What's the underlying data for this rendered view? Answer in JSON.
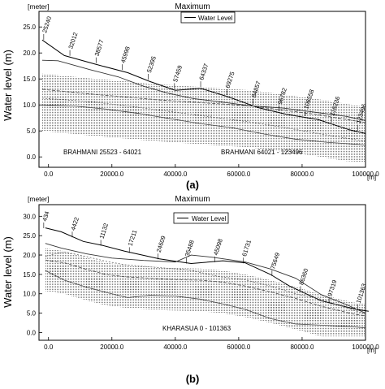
{
  "panels": [
    {
      "label": "(a)",
      "unit_label": "[meter]",
      "title": "Maximum",
      "ylabel": "Water level (m)",
      "x_unit": "[m]",
      "legend": "Water Level",
      "y_ticks": [
        "0.0",
        "5.0",
        "10.0",
        "15.0",
        "20.0",
        "25.0"
      ],
      "x_ticks": [
        "0.0",
        "20000.0",
        "40000.0",
        "60000.0",
        "80000.0",
        "100000.0"
      ],
      "xlim": [
        -3000,
        100000
      ],
      "ylim": [
        -2,
        28
      ],
      "reach_labels": [
        "BRAHMANI  25523 - 64021",
        "BRAHMANI  64021 - 123496"
      ],
      "chainages": [
        "25240",
        "32012",
        "38577",
        "45998",
        "52395",
        "57459",
        "64337",
        "69275",
        "84857",
        "96782",
        "106558",
        "116236",
        "123496"
      ],
      "series": [
        {
          "name": "Water Level",
          "x": [
            -2000,
            5000,
            15000,
            25000,
            32000,
            40000,
            48000,
            57000,
            66000,
            75000,
            85000,
            95000,
            100000
          ],
          "y": [
            22.5,
            19.5,
            17.8,
            16.2,
            14.5,
            12.8,
            13.2,
            11.5,
            9.5,
            8.2,
            7.2,
            5.2,
            4.5
          ]
        },
        {
          "name": "",
          "x": [
            -2000,
            3000,
            13000,
            22000,
            30000,
            38000,
            46000,
            54000,
            64000,
            74000,
            84000,
            94000,
            100000
          ],
          "y": [
            18.6,
            18.5,
            16.8,
            15.4,
            13.6,
            12.2,
            11.2,
            10.6,
            9.8,
            9.4,
            8.6,
            7.8,
            7.0
          ]
        },
        {
          "name": "",
          "x": [
            -2000,
            5000,
            15000,
            25000,
            34000,
            44000,
            54000,
            64000,
            74000,
            84000,
            94000,
            100000
          ],
          "y": [
            13.0,
            12.6,
            12.0,
            11.5,
            11.0,
            10.6,
            10.2,
            9.8,
            9.0,
            8.2,
            7.2,
            6.6
          ]
        },
        {
          "name": "",
          "x": [
            -2000,
            5000,
            15000,
            25000,
            35000,
            45000,
            55000,
            65000,
            75000,
            85000,
            95000,
            100000
          ],
          "y": [
            11.3,
            11.0,
            10.5,
            9.8,
            9.0,
            8.2,
            7.4,
            6.6,
            5.6,
            4.5,
            3.5,
            3.0
          ]
        },
        {
          "name": "",
          "x": [
            -2000,
            8000,
            18000,
            28000,
            38000,
            48000,
            58000,
            68000,
            78000,
            88000,
            98000,
            100000
          ],
          "y": [
            10.0,
            9.8,
            9.2,
            8.4,
            7.4,
            6.4,
            5.6,
            4.4,
            3.4,
            2.8,
            2.4,
            2.2
          ]
        }
      ]
    },
    {
      "label": "(b)",
      "unit_label": "[meter]",
      "title": "Maximum",
      "ylabel": "Water level (m)",
      "x_unit": "[m]",
      "legend": "Water Level",
      "y_ticks": [
        "0.0",
        "5.0",
        "10.0",
        "15.0",
        "20.0",
        "25.0",
        "30.0"
      ],
      "x_ticks": [
        "0.0",
        "20000.0",
        "40000.0",
        "60000.0",
        "80000.0",
        "100000.0"
      ],
      "xlim": [
        -3000,
        100000
      ],
      "ylim": [
        -2,
        33
      ],
      "reach_labels": [
        "KHARASUA  0 - 101363"
      ],
      "chainages": [
        "434",
        "4422",
        "11132",
        "17211",
        "24609",
        "35488",
        "45098",
        "61731",
        "75649",
        "86360",
        "97319",
        "101363"
      ],
      "series": [
        {
          "name": "Water Level",
          "x": [
            -1000,
            4000,
            11000,
            17000,
            24000,
            35000,
            45000,
            55000,
            62000,
            70000,
            76000,
            86000,
            97000,
            101000
          ],
          "y": [
            27.0,
            26.0,
            23.5,
            22.5,
            21.0,
            19.0,
            17.8,
            18.5,
            18.0,
            15.0,
            12.0,
            8.2,
            6.0,
            5.5
          ]
        },
        {
          "name": "",
          "x": [
            -1000,
            4000,
            12000,
            20000,
            30000,
            40000,
            45000,
            52000,
            62000,
            70000,
            78000,
            86000,
            94000,
            100000
          ],
          "y": [
            23.0,
            21.8,
            20.3,
            19.2,
            18.6,
            18.2,
            20.0,
            19.4,
            18.2,
            16.4,
            14.0,
            9.8,
            7.2,
            5.0
          ]
        },
        {
          "name": "",
          "x": [
            -1000,
            5000,
            12000,
            18000,
            24000,
            32000,
            38000,
            48000,
            55000,
            62000,
            70000,
            78000,
            86000,
            96000,
            100000
          ],
          "y": [
            18.7,
            18.0,
            16.3,
            15.0,
            14.4,
            14.0,
            13.7,
            13.5,
            13.0,
            12.0,
            10.5,
            8.8,
            6.8,
            4.8,
            4.3
          ]
        },
        {
          "name": "",
          "x": [
            -1000,
            5000,
            12000,
            18000,
            24000,
            34000,
            44000,
            54000,
            62000,
            70000,
            78000,
            86000,
            96000,
            100000
          ],
          "y": [
            19.7,
            20.8,
            19.6,
            18.4,
            17.5,
            16.8,
            16.2,
            14.4,
            13.6,
            12.0,
            10.0,
            8.6,
            5.8,
            4.8
          ]
        },
        {
          "name": "",
          "x": [
            -1000,
            5000,
            12000,
            18000,
            25000,
            32000,
            40000,
            48000,
            56000,
            62000,
            70000,
            78000,
            86000,
            96000,
            100000
          ],
          "y": [
            16.0,
            13.5,
            11.7,
            10.4,
            9.0,
            9.6,
            9.4,
            8.6,
            7.2,
            6.0,
            3.6,
            2.2,
            1.9,
            1.5,
            1.2
          ]
        }
      ]
    }
  ],
  "chart_data": [
    {
      "type": "line",
      "title": "Maximum",
      "xlabel": "[m]",
      "ylabel": "Water level (m)",
      "xlim": [
        -3000,
        100000
      ],
      "ylim": [
        -2,
        28
      ],
      "grid": false,
      "legend": "top-right",
      "series": [
        {
          "name": "Water Level",
          "x": [
            -2000,
            5000,
            15000,
            25000,
            32000,
            40000,
            48000,
            57000,
            66000,
            75000,
            85000,
            95000,
            100000
          ],
          "y": [
            22.5,
            19.5,
            17.8,
            16.2,
            14.5,
            12.8,
            13.2,
            11.5,
            9.5,
            8.2,
            7.2,
            5.2,
            4.5
          ]
        }
      ]
    },
    {
      "type": "line",
      "title": "Maximum",
      "xlabel": "[m]",
      "ylabel": "Water level (m)",
      "xlim": [
        -3000,
        100000
      ],
      "ylim": [
        -2,
        33
      ],
      "grid": false,
      "legend": "top-right",
      "series": [
        {
          "name": "Water Level",
          "x": [
            -1000,
            4000,
            11000,
            17000,
            24000,
            35000,
            45000,
            55000,
            62000,
            70000,
            76000,
            86000,
            97000,
            101000
          ],
          "y": [
            27.0,
            26.0,
            23.5,
            22.5,
            21.0,
            19.0,
            17.8,
            18.5,
            18.0,
            15.0,
            12.0,
            8.2,
            6.0,
            5.5
          ]
        }
      ]
    }
  ]
}
